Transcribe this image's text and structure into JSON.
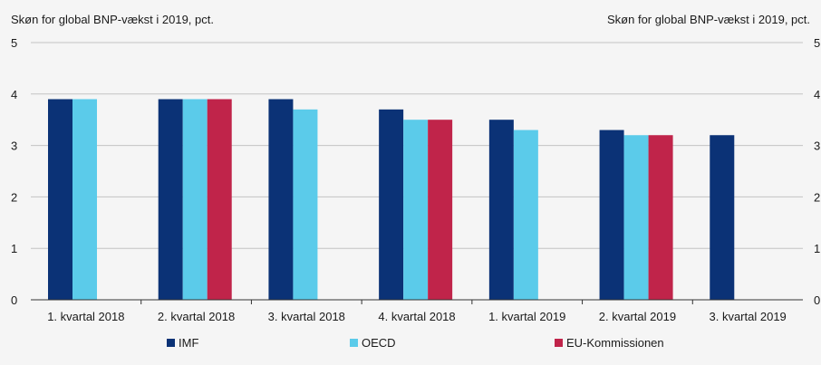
{
  "chart_data": {
    "type": "bar",
    "title_left": "Skøn for global BNP-vækst i 2019, pct.",
    "title_right": "Skøn for global BNP-vækst i 2019, pct.",
    "categories": [
      "1. kvartal 2018",
      "2. kvartal 2018",
      "3. kvartal 2018",
      "4. kvartal 2018",
      "1. kvartal 2019",
      "2. kvartal 2019",
      "3. kvartal 2019"
    ],
    "series": [
      {
        "name": "IMF",
        "color": "#0b3276",
        "values": [
          3.9,
          3.9,
          3.9,
          3.7,
          3.5,
          3.3,
          3.2
        ]
      },
      {
        "name": "OECD",
        "color": "#5bcbea",
        "values": [
          3.9,
          3.9,
          3.7,
          3.5,
          3.3,
          3.2,
          null
        ]
      },
      {
        "name": "EU-Kommissionen",
        "color": "#c0244a",
        "values": [
          null,
          3.9,
          null,
          3.5,
          null,
          3.2,
          null
        ]
      }
    ],
    "ylim": [
      0,
      5
    ],
    "yticks": [
      "0",
      "1",
      "2",
      "3",
      "4",
      "5"
    ],
    "grid": true,
    "legend_position": "bottom"
  }
}
